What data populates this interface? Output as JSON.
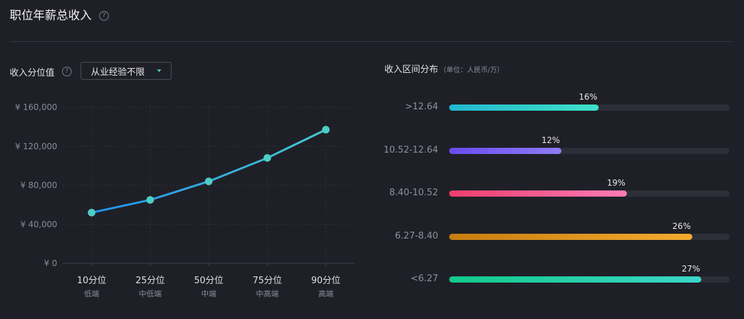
{
  "header": {
    "title": "职位年薪总收入",
    "help_glyph": "?"
  },
  "left_panel": {
    "label": "收入分位值",
    "help_glyph": "?",
    "dropdown": {
      "selected": "从业经验不限"
    }
  },
  "right_panel": {
    "label": "收入区间分布",
    "unit": "（单位：人民币/万）"
  },
  "chart_data": [
    {
      "type": "line",
      "categories": [
        "10分位",
        "25分位",
        "50分位",
        "75分位",
        "90分位"
      ],
      "sublabels": [
        "低端",
        "中低端",
        "中端",
        "中高端",
        "高端"
      ],
      "values": [
        52000,
        65000,
        84000,
        108000,
        137000
      ],
      "ylim": [
        0,
        160000
      ],
      "yticks": [
        0,
        40000,
        80000,
        120000,
        160000
      ],
      "ytick_labels": [
        "¥ 0",
        "¥ 40,000",
        "¥ 80,000",
        "¥ 120,000",
        "¥ 160,000"
      ],
      "grid": true,
      "line_colors": [
        "#1f8ff0",
        "#48c9cf"
      ],
      "point_color": "#4ecdc4"
    },
    {
      "type": "bar",
      "orientation": "horizontal",
      "categories": [
        ">12.64",
        "10.52-12.64",
        "8.40-10.52",
        "6.27-8.40",
        "<6.27"
      ],
      "values": [
        16,
        12,
        19,
        26,
        27
      ],
      "value_labels": [
        "16%",
        "12%",
        "19%",
        "26%",
        "27%"
      ],
      "max_value": 30,
      "gradients": [
        [
          "#21b8cf",
          "#3fe0c9"
        ],
        [
          "#6a4cf0",
          "#8f7cf6"
        ],
        [
          "#ee3e6c",
          "#ff7bb6"
        ],
        [
          "#c67d0f",
          "#f5aa2e"
        ],
        [
          "#12c98b",
          "#3bd7c9"
        ]
      ]
    }
  ]
}
